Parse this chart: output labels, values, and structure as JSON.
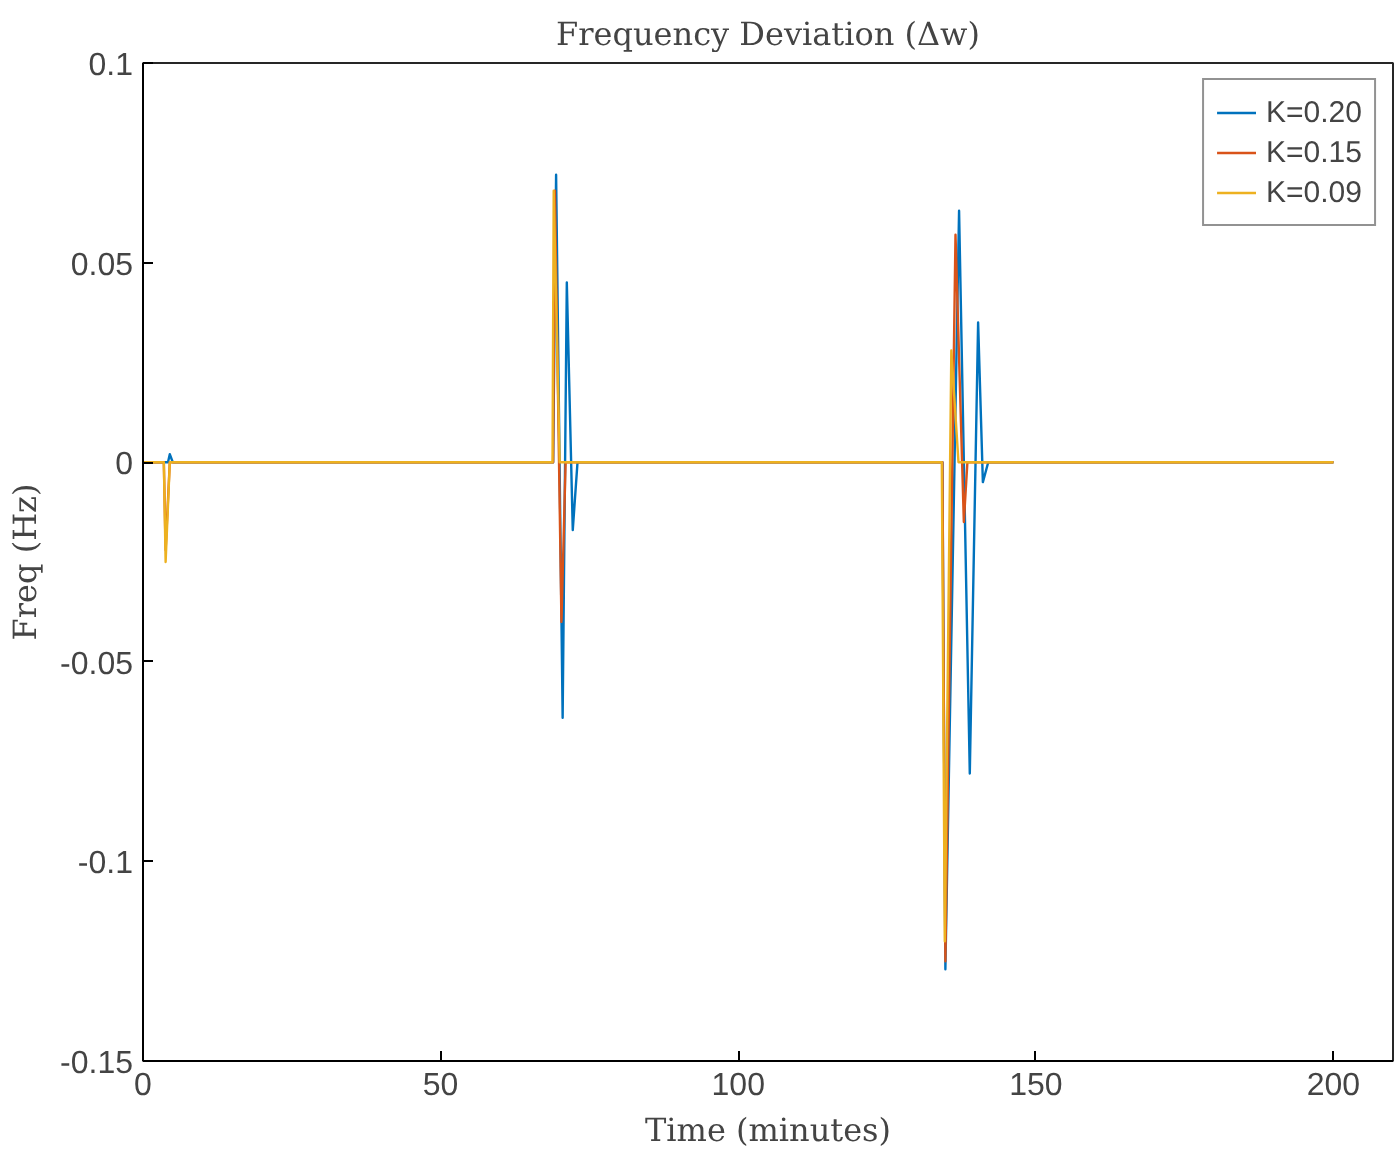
{
  "chart_data": {
    "type": "line",
    "title": "Frequency Deviation (Δw)",
    "xlabel": "Time (minutes)",
    "ylabel": "Freq (Hz)",
    "xlim": [
      0,
      210
    ],
    "ylim": [
      -0.15,
      0.1
    ],
    "xticks": [
      0,
      50,
      100,
      150,
      200
    ],
    "yticks": [
      -0.15,
      -0.1,
      -0.05,
      0,
      0.05,
      0.1
    ],
    "grid": false,
    "legend": "top right",
    "line_style": "solid",
    "marker": "none",
    "series": [
      {
        "name": "K=0.20",
        "color": "#0072bd",
        "x": [
          0,
          3.5,
          3.8,
          4.2,
          4.5,
          5,
          68.9,
          69.4,
          70.5,
          71.2,
          72.2,
          73,
          134.3,
          134.8,
          137.1,
          138.9,
          140.3,
          141.1,
          142,
          200
        ],
        "values": [
          0,
          0,
          null,
          0,
          0.002,
          0,
          0,
          0.072,
          -0.064,
          0.045,
          -0.017,
          0,
          0,
          -0.127,
          0.063,
          -0.078,
          0.035,
          -0.005,
          0,
          0
        ]
      },
      {
        "name": "K=0.15",
        "color": "#d95319",
        "x": [
          0,
          3.5,
          3.8,
          4.5,
          68.9,
          69.2,
          70.3,
          71,
          134.3,
          134.8,
          136.5,
          137.9,
          138.5,
          200
        ],
        "values": [
          0,
          0,
          -0.022,
          0,
          0,
          0.068,
          -0.04,
          0,
          0,
          -0.125,
          0.057,
          -0.015,
          0,
          0
        ]
      },
      {
        "name": "K=0.09",
        "color": "#edb120",
        "x": [
          0,
          3.5,
          3.8,
          4.5,
          68.8,
          69,
          70,
          134.2,
          134.7,
          135.8,
          137,
          200
        ],
        "values": [
          0,
          0,
          -0.025,
          0,
          0,
          0.068,
          0,
          0,
          -0.12,
          0.028,
          0,
          0
        ]
      }
    ]
  }
}
